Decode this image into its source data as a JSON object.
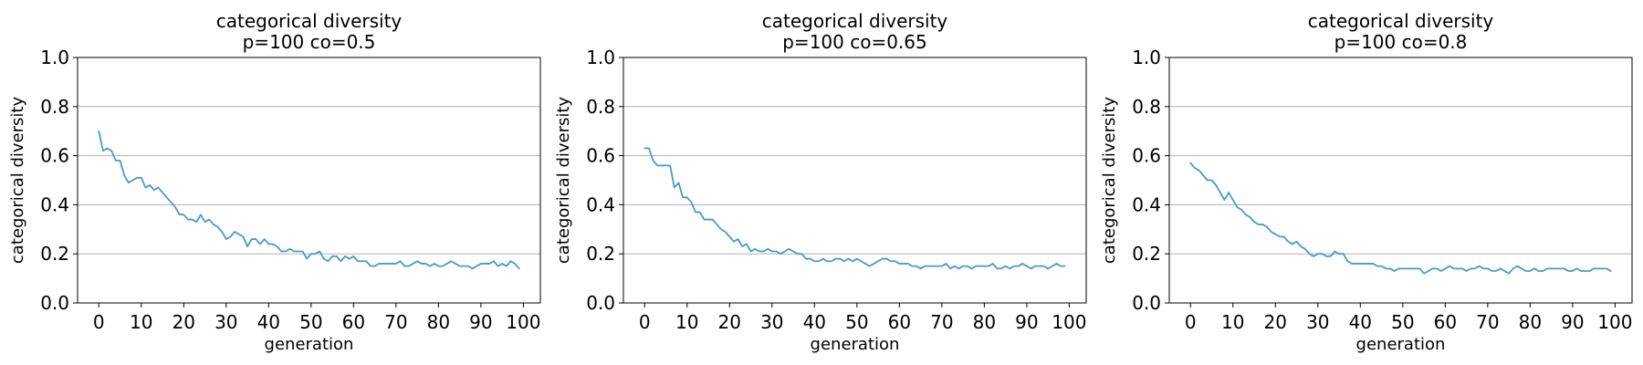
{
  "chart_data": [
    {
      "type": "line",
      "title_line1": "categorical diversity",
      "title_line2": "p=100 co=0.5",
      "xlabel": "generation",
      "ylabel": "categorical diversity",
      "xlim": [
        -5,
        104
      ],
      "ylim": [
        0.0,
        1.0
      ],
      "xticks": [
        0,
        10,
        20,
        30,
        40,
        50,
        60,
        70,
        80,
        90,
        100
      ],
      "yticks": [
        0.0,
        0.2,
        0.4,
        0.6,
        0.8,
        1.0
      ],
      "ytick_labels": [
        "0.0",
        "0.2",
        "0.4",
        "0.6",
        "0.8",
        "1.0"
      ],
      "grid": "y",
      "color": "#4a9acb",
      "series": [
        {
          "x": [
            0,
            1,
            2,
            3,
            4,
            5,
            6,
            7,
            8,
            9,
            10,
            11,
            12,
            13,
            14,
            15,
            16,
            17,
            18,
            19,
            20,
            21,
            22,
            23,
            24,
            25,
            26,
            27,
            28,
            29,
            30,
            31,
            32,
            33,
            34,
            35,
            36,
            37,
            38,
            39,
            40,
            41,
            42,
            43,
            44,
            45,
            46,
            47,
            48,
            49,
            50,
            51,
            52,
            53,
            54,
            55,
            56,
            57,
            58,
            59,
            60,
            61,
            62,
            63,
            64,
            65,
            66,
            67,
            68,
            69,
            70,
            71,
            72,
            73,
            74,
            75,
            76,
            77,
            78,
            79,
            80,
            81,
            82,
            83,
            84,
            85,
            86,
            87,
            88,
            89,
            90,
            91,
            92,
            93,
            94,
            95,
            96,
            97,
            98,
            99
          ],
          "values": [
            0.7,
            0.62,
            0.63,
            0.62,
            0.58,
            0.58,
            0.52,
            0.49,
            0.5,
            0.51,
            0.51,
            0.47,
            0.48,
            0.46,
            0.47,
            0.45,
            0.43,
            0.41,
            0.39,
            0.36,
            0.36,
            0.34,
            0.34,
            0.33,
            0.36,
            0.33,
            0.34,
            0.32,
            0.31,
            0.29,
            0.26,
            0.27,
            0.29,
            0.28,
            0.27,
            0.23,
            0.26,
            0.26,
            0.24,
            0.26,
            0.24,
            0.24,
            0.23,
            0.21,
            0.21,
            0.22,
            0.21,
            0.21,
            0.21,
            0.18,
            0.2,
            0.2,
            0.21,
            0.18,
            0.17,
            0.19,
            0.19,
            0.17,
            0.19,
            0.18,
            0.19,
            0.17,
            0.17,
            0.17,
            0.15,
            0.15,
            0.16,
            0.16,
            0.16,
            0.16,
            0.16,
            0.17,
            0.15,
            0.15,
            0.16,
            0.17,
            0.16,
            0.16,
            0.15,
            0.16,
            0.15,
            0.15,
            0.16,
            0.17,
            0.16,
            0.15,
            0.15,
            0.15,
            0.14,
            0.15,
            0.16,
            0.16,
            0.16,
            0.17,
            0.15,
            0.16,
            0.15,
            0.17,
            0.16,
            0.14
          ]
        }
      ]
    },
    {
      "type": "line",
      "title_line1": "categorical diversity",
      "title_line2": "p=100 co=0.65",
      "xlabel": "generation",
      "ylabel": "categorical diversity",
      "xlim": [
        -5,
        104
      ],
      "ylim": [
        0.0,
        1.0
      ],
      "xticks": [
        0,
        10,
        20,
        30,
        40,
        50,
        60,
        70,
        80,
        90,
        100
      ],
      "yticks": [
        0.0,
        0.2,
        0.4,
        0.6,
        0.8,
        1.0
      ],
      "ytick_labels": [
        "0.0",
        "0.2",
        "0.4",
        "0.6",
        "0.8",
        "1.0"
      ],
      "grid": "y",
      "color": "#4a9acb",
      "series": [
        {
          "x": [
            0,
            1,
            2,
            3,
            4,
            5,
            6,
            7,
            8,
            9,
            10,
            11,
            12,
            13,
            14,
            15,
            16,
            17,
            18,
            19,
            20,
            21,
            22,
            23,
            24,
            25,
            26,
            27,
            28,
            29,
            30,
            31,
            32,
            33,
            34,
            35,
            36,
            37,
            38,
            39,
            40,
            41,
            42,
            43,
            44,
            45,
            46,
            47,
            48,
            49,
            50,
            51,
            52,
            53,
            54,
            55,
            56,
            57,
            58,
            59,
            60,
            61,
            62,
            63,
            64,
            65,
            66,
            67,
            68,
            69,
            70,
            71,
            72,
            73,
            74,
            75,
            76,
            77,
            78,
            79,
            80,
            81,
            82,
            83,
            84,
            85,
            86,
            87,
            88,
            89,
            90,
            91,
            92,
            93,
            94,
            95,
            96,
            97,
            98,
            99
          ],
          "values": [
            0.63,
            0.63,
            0.58,
            0.56,
            0.56,
            0.56,
            0.56,
            0.47,
            0.49,
            0.43,
            0.43,
            0.41,
            0.37,
            0.37,
            0.34,
            0.34,
            0.34,
            0.32,
            0.3,
            0.29,
            0.27,
            0.25,
            0.26,
            0.23,
            0.24,
            0.21,
            0.22,
            0.21,
            0.21,
            0.22,
            0.21,
            0.21,
            0.2,
            0.21,
            0.22,
            0.21,
            0.2,
            0.2,
            0.18,
            0.18,
            0.17,
            0.17,
            0.18,
            0.17,
            0.17,
            0.18,
            0.18,
            0.17,
            0.18,
            0.17,
            0.18,
            0.17,
            0.16,
            0.15,
            0.16,
            0.17,
            0.18,
            0.18,
            0.17,
            0.17,
            0.16,
            0.16,
            0.16,
            0.15,
            0.15,
            0.14,
            0.15,
            0.15,
            0.15,
            0.15,
            0.15,
            0.16,
            0.14,
            0.15,
            0.14,
            0.15,
            0.15,
            0.14,
            0.15,
            0.15,
            0.15,
            0.15,
            0.16,
            0.14,
            0.14,
            0.15,
            0.14,
            0.15,
            0.15,
            0.16,
            0.15,
            0.14,
            0.15,
            0.15,
            0.15,
            0.14,
            0.15,
            0.16,
            0.15,
            0.15
          ]
        }
      ]
    },
    {
      "type": "line",
      "title_line1": "categorical diversity",
      "title_line2": "p=100 co=0.8",
      "xlabel": "generation",
      "ylabel": "categorical diversity",
      "xlim": [
        -5,
        104
      ],
      "ylim": [
        0.0,
        1.0
      ],
      "xticks": [
        0,
        10,
        20,
        30,
        40,
        50,
        60,
        70,
        80,
        90,
        100
      ],
      "yticks": [
        0.0,
        0.2,
        0.4,
        0.6,
        0.8,
        1.0
      ],
      "ytick_labels": [
        "0.0",
        "0.2",
        "0.4",
        "0.6",
        "0.8",
        "1.0"
      ],
      "grid": "y",
      "color": "#4a9acb",
      "series": [
        {
          "x": [
            0,
            1,
            2,
            3,
            4,
            5,
            6,
            7,
            8,
            9,
            10,
            11,
            12,
            13,
            14,
            15,
            16,
            17,
            18,
            19,
            20,
            21,
            22,
            23,
            24,
            25,
            26,
            27,
            28,
            29,
            30,
            31,
            32,
            33,
            34,
            35,
            36,
            37,
            38,
            39,
            40,
            41,
            42,
            43,
            44,
            45,
            46,
            47,
            48,
            49,
            50,
            51,
            52,
            53,
            54,
            55,
            56,
            57,
            58,
            59,
            60,
            61,
            62,
            63,
            64,
            65,
            66,
            67,
            68,
            69,
            70,
            71,
            72,
            73,
            74,
            75,
            76,
            77,
            78,
            79,
            80,
            81,
            82,
            83,
            84,
            85,
            86,
            87,
            88,
            89,
            90,
            91,
            92,
            93,
            94,
            95,
            96,
            97,
            98,
            99
          ],
          "values": [
            0.57,
            0.55,
            0.54,
            0.52,
            0.5,
            0.5,
            0.48,
            0.45,
            0.42,
            0.45,
            0.42,
            0.39,
            0.38,
            0.36,
            0.35,
            0.33,
            0.32,
            0.32,
            0.31,
            0.29,
            0.28,
            0.27,
            0.27,
            0.25,
            0.24,
            0.25,
            0.23,
            0.22,
            0.2,
            0.19,
            0.2,
            0.2,
            0.19,
            0.19,
            0.21,
            0.2,
            0.2,
            0.17,
            0.16,
            0.16,
            0.16,
            0.16,
            0.16,
            0.16,
            0.15,
            0.15,
            0.14,
            0.14,
            0.13,
            0.14,
            0.14,
            0.14,
            0.14,
            0.14,
            0.14,
            0.12,
            0.13,
            0.14,
            0.14,
            0.13,
            0.14,
            0.15,
            0.14,
            0.14,
            0.14,
            0.13,
            0.14,
            0.14,
            0.15,
            0.14,
            0.14,
            0.13,
            0.13,
            0.14,
            0.13,
            0.12,
            0.14,
            0.15,
            0.14,
            0.13,
            0.13,
            0.14,
            0.13,
            0.13,
            0.14,
            0.14,
            0.14,
            0.14,
            0.14,
            0.13,
            0.13,
            0.14,
            0.13,
            0.13,
            0.13,
            0.14,
            0.14,
            0.14,
            0.14,
            0.13
          ]
        }
      ]
    }
  ]
}
